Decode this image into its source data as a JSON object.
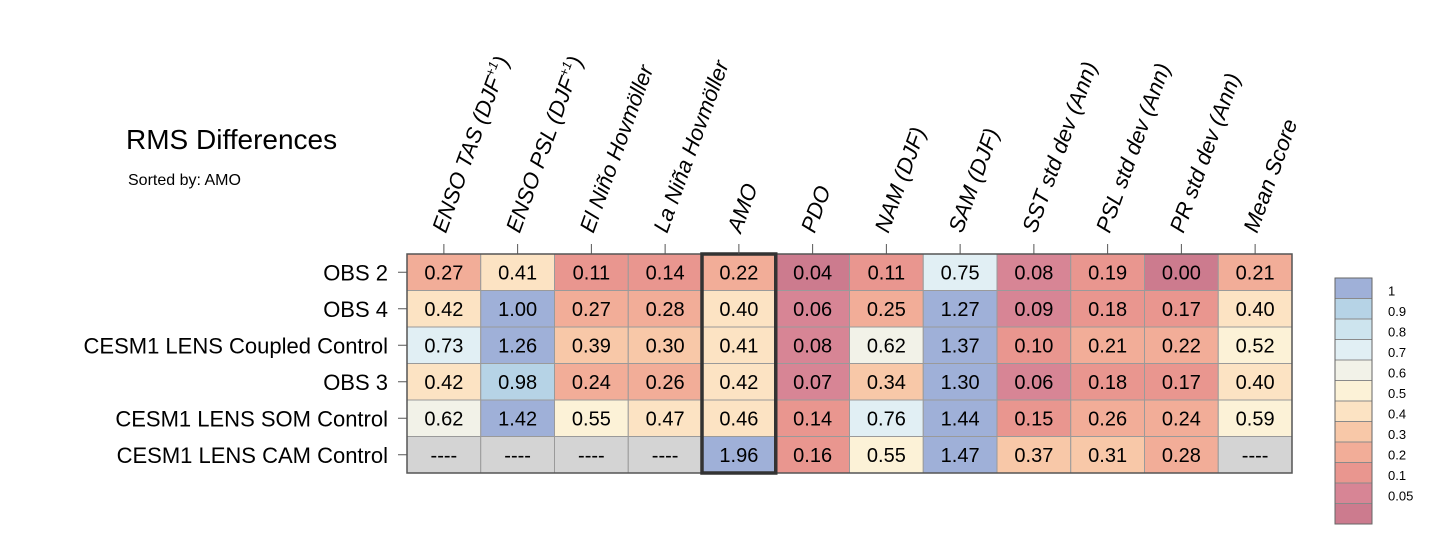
{
  "header": {
    "title": "RMS Differences",
    "subtitle": "Sorted by: AMO"
  },
  "chart_data": {
    "type": "heatmap",
    "title": "RMS Differences",
    "subtitle": "Sorted by: AMO",
    "columns": [
      "ENSO TAS (DJF+1)",
      "ENSO PSL (DJF+1)",
      "El Niño Hovmöller",
      "La Niña Hovmöller",
      "AMO",
      "PDO",
      "NAM (DJF)",
      "SAM (DJF)",
      "SST std dev (Ann)",
      "PSL std dev (Ann)",
      "PR std dev (Ann)",
      "Mean Score"
    ],
    "rows": [
      "OBS 2",
      "OBS 4",
      "CESM1 LENS Coupled Control",
      "OBS 3",
      "CESM1 LENS SOM Control",
      "CESM1 LENS CAM Control"
    ],
    "values": [
      [
        0.27,
        0.41,
        0.11,
        0.14,
        0.22,
        0.04,
        0.11,
        0.75,
        0.08,
        0.19,
        0.0,
        0.21
      ],
      [
        0.42,
        1.0,
        0.27,
        0.28,
        0.4,
        0.06,
        0.25,
        1.27,
        0.09,
        0.18,
        0.17,
        0.4
      ],
      [
        0.73,
        1.26,
        0.39,
        0.3,
        0.41,
        0.08,
        0.62,
        1.37,
        0.1,
        0.21,
        0.22,
        0.52
      ],
      [
        0.42,
        0.98,
        0.24,
        0.26,
        0.42,
        0.07,
        0.34,
        1.3,
        0.06,
        0.18,
        0.17,
        0.4
      ],
      [
        0.62,
        1.42,
        0.55,
        0.47,
        0.46,
        0.14,
        0.76,
        1.44,
        0.15,
        0.26,
        0.24,
        0.59
      ],
      [
        null,
        null,
        null,
        null,
        1.96,
        0.16,
        0.55,
        1.47,
        0.37,
        0.31,
        0.28,
        null
      ]
    ],
    "missing_label": "----",
    "highlighted_column": "AMO",
    "colorbar": {
      "levels": [
        "1",
        "0.9",
        "0.8",
        "0.7",
        "0.6",
        "0.5",
        "0.4",
        "0.3",
        "0.2",
        "0.1",
        "0.05"
      ],
      "colors": [
        "#9fb0d8",
        "#b6d3e6",
        "#cde4ee",
        "#e1eff4",
        "#f2f2e8",
        "#fcf2d7",
        "#fce3c3",
        "#f8c8a8",
        "#f2ad98",
        "#e9968f",
        "#d78595",
        "#cc7b8e"
      ]
    },
    "missing_color": "#d4d4d4"
  }
}
